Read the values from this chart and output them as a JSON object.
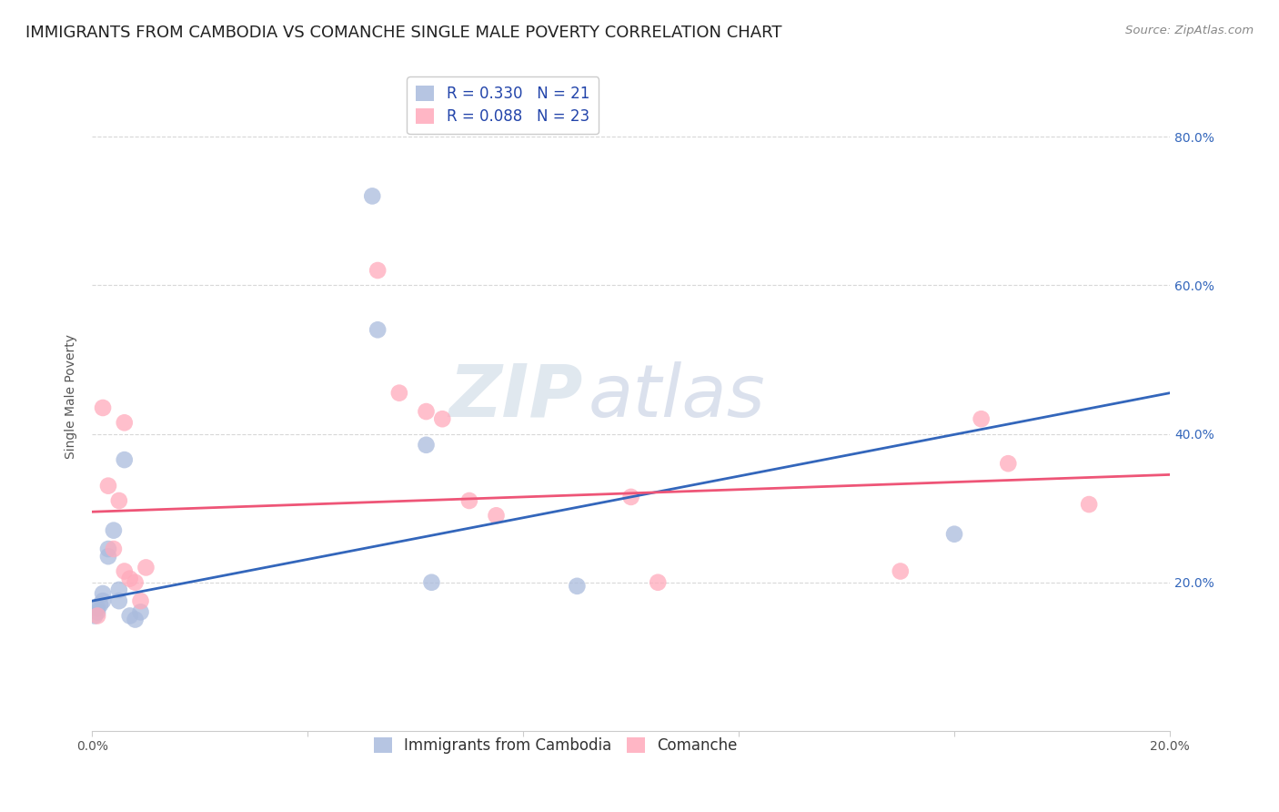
{
  "title": "IMMIGRANTS FROM CAMBODIA VS COMANCHE SINGLE MALE POVERTY CORRELATION CHART",
  "source": "Source: ZipAtlas.com",
  "ylabel": "Single Male Poverty",
  "xlim": [
    0.0,
    0.2
  ],
  "ylim": [
    0.0,
    0.9
  ],
  "yticks": [
    0.2,
    0.4,
    0.6,
    0.8
  ],
  "ytick_labels": [
    "20.0%",
    "40.0%",
    "60.0%",
    "80.0%"
  ],
  "xticks": [
    0.0,
    0.04,
    0.08,
    0.12,
    0.16,
    0.2
  ],
  "xtick_labels": [
    "0.0%",
    "",
    "",
    "",
    "",
    "20.0%"
  ],
  "background_color": "#ffffff",
  "grid_color": "#d8d8d8",
  "blue_color": "#aabbdd",
  "pink_color": "#ffaabb",
  "blue_line_color": "#3366bb",
  "pink_line_color": "#ee5577",
  "legend_blue_label": "R = 0.330   N = 21",
  "legend_pink_label": "R = 0.088   N = 23",
  "legend_series1": "Immigrants from Cambodia",
  "legend_series2": "Comanche",
  "blue_trend_x": [
    0.0,
    0.2
  ],
  "blue_trend_y": [
    0.175,
    0.455
  ],
  "pink_trend_x": [
    0.0,
    0.2
  ],
  "pink_trend_y": [
    0.295,
    0.345
  ],
  "blue_points_x": [
    0.0005,
    0.001,
    0.001,
    0.0015,
    0.002,
    0.002,
    0.003,
    0.003,
    0.004,
    0.005,
    0.005,
    0.006,
    0.007,
    0.008,
    0.009,
    0.052,
    0.053,
    0.062,
    0.063,
    0.09,
    0.16
  ],
  "blue_points_y": [
    0.155,
    0.16,
    0.165,
    0.17,
    0.175,
    0.185,
    0.235,
    0.245,
    0.27,
    0.175,
    0.19,
    0.365,
    0.155,
    0.15,
    0.16,
    0.72,
    0.54,
    0.385,
    0.2,
    0.195,
    0.265
  ],
  "pink_points_x": [
    0.001,
    0.002,
    0.003,
    0.004,
    0.005,
    0.006,
    0.006,
    0.007,
    0.008,
    0.009,
    0.01,
    0.053,
    0.057,
    0.062,
    0.065,
    0.07,
    0.075,
    0.1,
    0.105,
    0.15,
    0.165,
    0.17,
    0.185
  ],
  "pink_points_y": [
    0.155,
    0.435,
    0.33,
    0.245,
    0.31,
    0.215,
    0.415,
    0.205,
    0.2,
    0.175,
    0.22,
    0.62,
    0.455,
    0.43,
    0.42,
    0.31,
    0.29,
    0.315,
    0.2,
    0.215,
    0.42,
    0.36,
    0.305
  ],
  "watermark_zip": "ZIP",
  "watermark_atlas": "atlas",
  "title_fontsize": 13,
  "axis_label_fontsize": 10,
  "tick_fontsize": 10,
  "legend_fontsize": 12,
  "right_tick_color": "#3366bb"
}
